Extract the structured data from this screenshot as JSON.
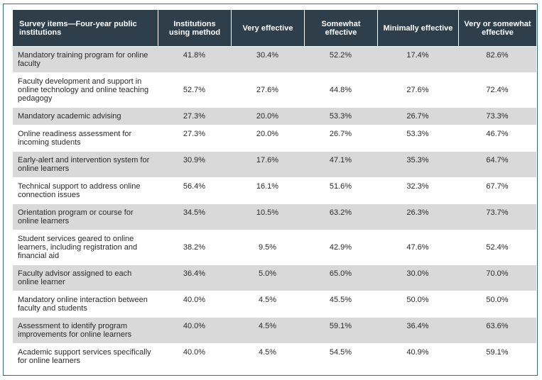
{
  "header": {
    "item": "Survey items—Four-year public institutions",
    "using": "Institutions using method",
    "very": "Very effective",
    "somewhat": "Somewhat effective",
    "minimally": "Minimally effective",
    "very_or_somewhat": "Very or somewhat effective"
  },
  "rows": [
    {
      "item": "Mandatory training program for online faculty",
      "using": "41.8%",
      "very": "30.4%",
      "somewhat": "52.2%",
      "minimally": "17.4%",
      "vos": "82.6%"
    },
    {
      "item": "Faculty development and support in online technology and online teaching pedagogy",
      "using": "52.7%",
      "very": "27.6%",
      "somewhat": "44.8%",
      "minimally": "27.6%",
      "vos": "72.4%"
    },
    {
      "item": "Mandatory academic advising",
      "using": "27.3%",
      "very": "20.0%",
      "somewhat": "53.3%",
      "minimally": "26.7%",
      "vos": "73.3%"
    },
    {
      "item": "Online readiness assessment for incoming students",
      "using": "27.3%",
      "very": "20.0%",
      "somewhat": "26.7%",
      "minimally": "53.3%",
      "vos": "46.7%"
    },
    {
      "item": "Early-alert and intervention system for online learners",
      "using": "30.9%",
      "very": "17.6%",
      "somewhat": "47.1%",
      "minimally": "35.3%",
      "vos": "64.7%"
    },
    {
      "item": "Technical support to address online connection issues",
      "using": "56.4%",
      "very": "16.1%",
      "somewhat": "51.6%",
      "minimally": "32.3%",
      "vos": "67.7%"
    },
    {
      "item": "Orientation program or course for online learners",
      "using": "34.5%",
      "very": "10.5%",
      "somewhat": "63.2%",
      "minimally": "26.3%",
      "vos": "73.7%"
    },
    {
      "item": "Student services geared to online learners, including registration and financial aid",
      "using": "38.2%",
      "very": "9.5%",
      "somewhat": "42.9%",
      "minimally": "47.6%",
      "vos": "52.4%"
    },
    {
      "item": "Faculty advisor assigned to each online learner",
      "using": "36.4%",
      "very": "5.0%",
      "somewhat": "65.0%",
      "minimally": "30.0%",
      "vos": "70.0%"
    },
    {
      "item": "Mandatory online interaction between faculty and students",
      "using": "40.0%",
      "very": "4.5%",
      "somewhat": "45.5%",
      "minimally": "50.0%",
      "vos": "50.0%"
    },
    {
      "item": "Assessment to identify program improvements for online learners",
      "using": "40.0%",
      "very": "4.5%",
      "somewhat": "59.1%",
      "minimally": "36.4%",
      "vos": "63.6%"
    },
    {
      "item": "Academic support services specifically for online learners",
      "using": "40.0%",
      "very": "4.5%",
      "somewhat": "54.5%",
      "minimally": "40.9%",
      "vos": "59.1%"
    }
  ],
  "colors": {
    "header_bg": "#2e3f4b",
    "shade_row": "#d9d9d9",
    "frame": "#2f6e7a"
  }
}
